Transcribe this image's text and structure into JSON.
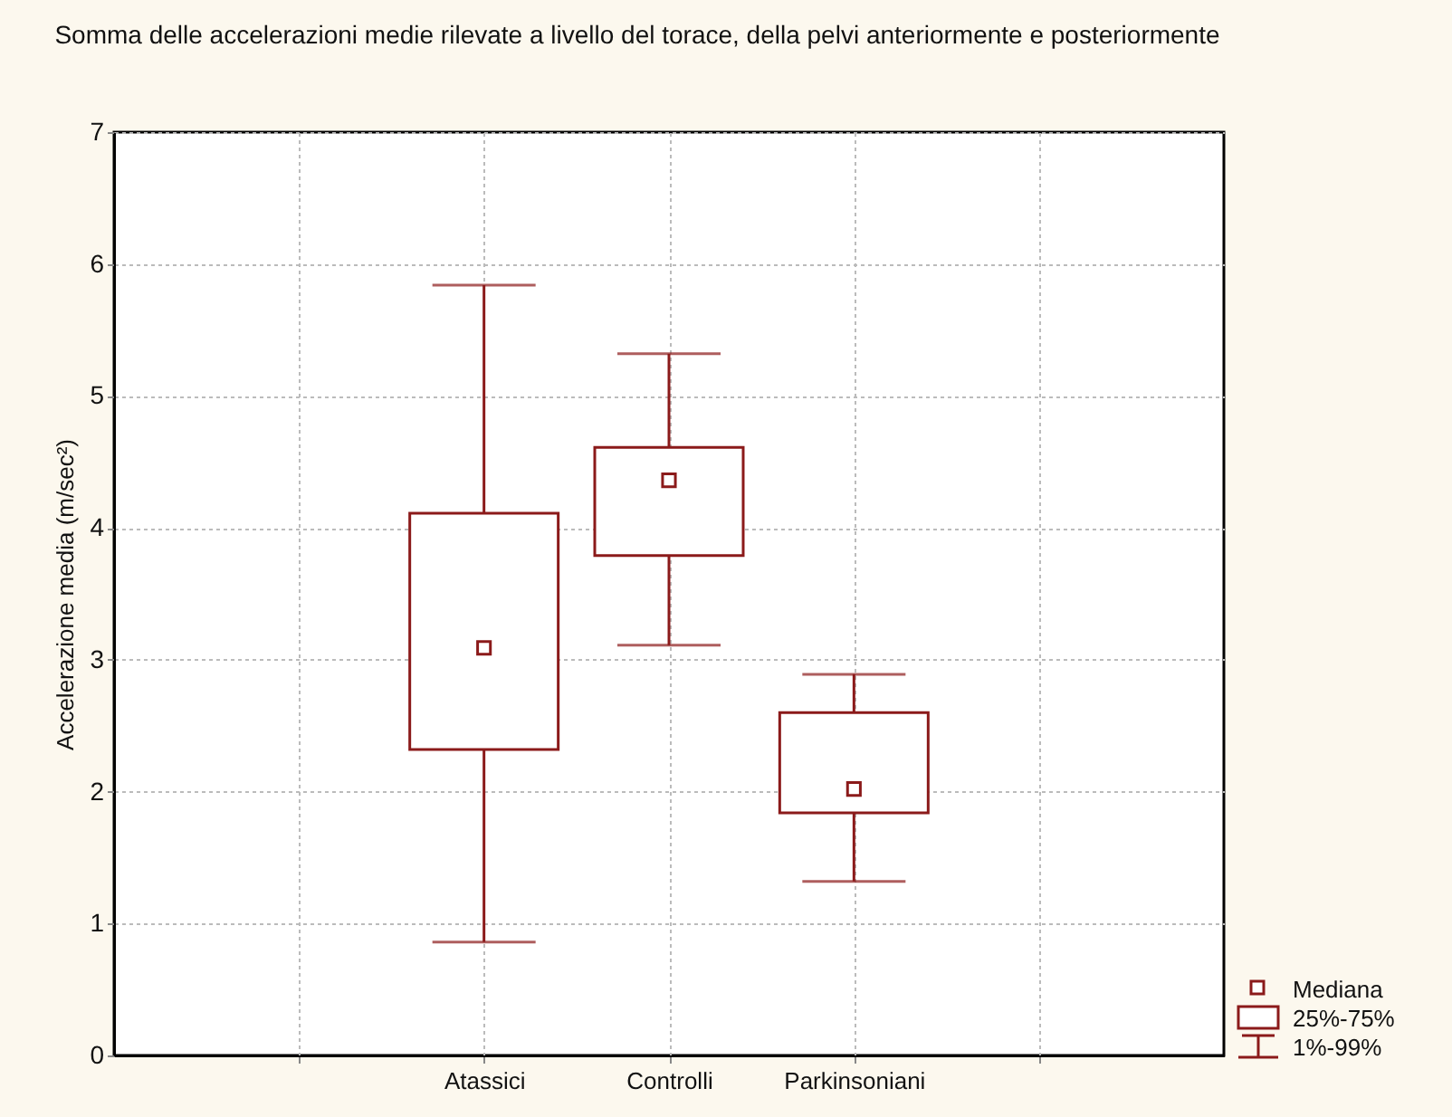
{
  "chart_data": {
    "type": "box",
    "title": "Somma delle accelerazioni medie rilevate a livello del torace, della pelvi anteriormente e posteriormente",
    "ylabel": "Accelerazione media (m/sec²)",
    "categories": [
      null,
      "Atassici",
      "Controlli",
      "Parkinsoniani",
      null
    ],
    "boxes": [
      null,
      {
        "low": 0.86,
        "q1": 2.32,
        "median": 3.09,
        "q3": 4.11,
        "high": 5.84
      },
      {
        "low": 3.11,
        "q1": 3.79,
        "median": 4.36,
        "q3": 4.61,
        "high": 5.32
      },
      {
        "low": 1.32,
        "q1": 1.84,
        "median": 2.02,
        "q3": 2.6,
        "high": 2.89
      },
      null
    ],
    "color": "#8b1a1a",
    "ylim": [
      0,
      7
    ],
    "yticks": [
      0,
      1,
      2,
      3,
      4,
      5,
      6,
      7
    ],
    "grid": true,
    "annotations": [
      "Mediana",
      "25%-75%",
      "1%-99%"
    ]
  }
}
